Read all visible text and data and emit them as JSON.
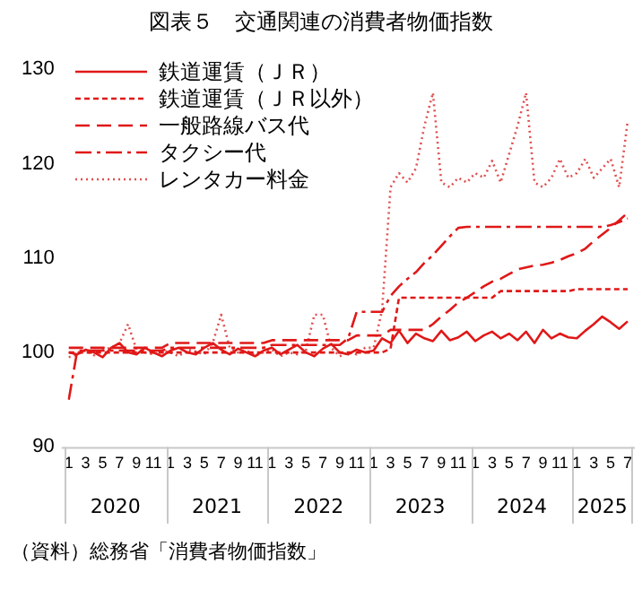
{
  "chart_data": {
    "type": "line",
    "title": "図表５　交通関連の消費者物価指数",
    "categories": [
      "1",
      null,
      "3",
      null,
      "5",
      null,
      "7",
      null,
      "9",
      null,
      "11",
      null,
      "1",
      null,
      "3",
      null,
      "5",
      null,
      "7",
      null,
      "9",
      null,
      "11",
      null,
      "1",
      null,
      "3",
      null,
      "5",
      null,
      "7",
      null,
      "9",
      null,
      "11",
      null,
      "1",
      null,
      "3",
      null,
      "5",
      null,
      "7",
      null,
      "9",
      null,
      "11",
      null,
      "1",
      null,
      "3",
      null,
      "5",
      null,
      "7",
      null,
      "9",
      null,
      "11",
      null,
      "1",
      null,
      "3",
      null,
      "5",
      null,
      "7"
    ],
    "series": [
      {
        "name": "鉄道運賃（ＪＲ）",
        "color": "#e01818",
        "line_style": "solid",
        "values": [
          100,
          99.8,
          100.3,
          100,
          99.5,
          100.5,
          101,
          100,
          99.8,
          100.5,
          100,
          99.6,
          100.2,
          100.5,
          100,
          99.8,
          100.5,
          101,
          100.3,
          99.8,
          100.4,
          100,
          99.6,
          100.2,
          100.5,
          99.8,
          100.3,
          100.8,
          100,
          99.6,
          100.4,
          100.9,
          100,
          99.8,
          100.3,
          100,
          100.2,
          101.5,
          101,
          102.3,
          101,
          102,
          101.5,
          101.2,
          102.3,
          101.3,
          101.6,
          102.2,
          101.2,
          101.8,
          102.2,
          101.5,
          102,
          101.3,
          102.2,
          101,
          102.4,
          101.5,
          102,
          101.6,
          101.5,
          102.3,
          103,
          103.8,
          103.2,
          102.5,
          103.3
        ]
      },
      {
        "name": "鉄道運賃（ＪＲ以外）",
        "color": "#e01818",
        "line_style": "short_dashed",
        "values": [
          100,
          100,
          100,
          100,
          100,
          100,
          100,
          100,
          100,
          100,
          100,
          100,
          100,
          100,
          100,
          100,
          100,
          100,
          100,
          100,
          100,
          100,
          100,
          100,
          100,
          100,
          100,
          100,
          100,
          100,
          100,
          100,
          100,
          100,
          100,
          100,
          100,
          100,
          100.4,
          105.8,
          105.8,
          105.8,
          105.8,
          105.8,
          105.8,
          105.8,
          105.8,
          105.8,
          105.8,
          105.8,
          105.8,
          106.5,
          106.5,
          106.5,
          106.5,
          106.5,
          106.5,
          106.5,
          106.5,
          106.5,
          106.7,
          106.7,
          106.7,
          106.7,
          106.7,
          106.7,
          106.7
        ]
      },
      {
        "name": "一般路線バス代",
        "color": "#e01818",
        "line_style": "dashed",
        "values": [
          100.5,
          100.5,
          100.5,
          100.5,
          100.5,
          100.5,
          100.5,
          100.5,
          100.5,
          100.5,
          100.5,
          100.5,
          101,
          101,
          101,
          101,
          101,
          101,
          101,
          101,
          101,
          101,
          101,
          101,
          101.3,
          101.3,
          101.3,
          101.3,
          101.3,
          101.3,
          101.3,
          101.3,
          101.3,
          101.3,
          101.8,
          101.8,
          101.8,
          101.8,
          102.4,
          102.4,
          102.4,
          102.4,
          102.4,
          103,
          103.8,
          104.5,
          105.3,
          105.8,
          106.4,
          107,
          107.5,
          107.8,
          108.3,
          108.8,
          109,
          109.2,
          109.3,
          109.5,
          109.8,
          110.2,
          110.5,
          111,
          111.8,
          112.5,
          113.2,
          114,
          114.8
        ]
      },
      {
        "name": "タクシー代",
        "color": "#e01818",
        "line_style": "dashdot",
        "values": [
          95,
          100.2,
          100.2,
          100.2,
          100.2,
          100.2,
          100.2,
          100.2,
          100.2,
          100.2,
          100.2,
          100.2,
          100.5,
          100.5,
          100.5,
          100.5,
          100.5,
          100.5,
          100.5,
          100.5,
          100.5,
          100.5,
          100.5,
          100.5,
          100.8,
          100.8,
          100.8,
          100.8,
          100.8,
          100.8,
          100.8,
          100.8,
          100.8,
          101.5,
          104.3,
          104.3,
          104.3,
          104.3,
          106,
          107,
          107.8,
          108.5,
          109.5,
          110.3,
          111.3,
          112.3,
          113.2,
          113.3,
          113.3,
          113.3,
          113.3,
          113.3,
          113.3,
          113.3,
          113.3,
          113.3,
          113.3,
          113.3,
          113.3,
          113.3,
          113.3,
          113.3,
          113.3,
          113.3,
          113.5,
          113.8,
          114.2
        ]
      },
      {
        "name": "レンタカー料金",
        "color": "#e05050",
        "line_style": "dotted",
        "values": [
          99.5,
          99.8,
          100.2,
          99.7,
          100.3,
          100.5,
          101,
          103,
          100.3,
          100,
          99.8,
          100.2,
          100,
          99.6,
          100.3,
          100.1,
          99.8,
          101,
          104,
          100.5,
          100,
          100.2,
          99.7,
          100,
          100.3,
          99.6,
          100,
          99.8,
          100.2,
          104,
          104,
          100.5,
          99.6,
          100,
          99.8,
          100.5,
          100.5,
          104.5,
          117.5,
          119,
          118,
          119.5,
          124,
          127.5,
          118,
          117.5,
          118.5,
          118,
          119,
          118.5,
          120.3,
          118,
          121,
          124,
          127.5,
          118,
          117.5,
          118.5,
          120.5,
          118.5,
          119,
          120.5,
          118.5,
          119.5,
          120.5,
          117.5,
          124.5
        ]
      }
    ],
    "ylim": [
      90,
      130
    ],
    "yticks": [
      90,
      100,
      110,
      120,
      130
    ],
    "grid": false,
    "legend": "top left",
    "marker": "none",
    "annotations": [
      "2020",
      "2021",
      "2022",
      "2023",
      "2024",
      "2025",
      "（資料）総務省「消費者物価指数」"
    ]
  }
}
